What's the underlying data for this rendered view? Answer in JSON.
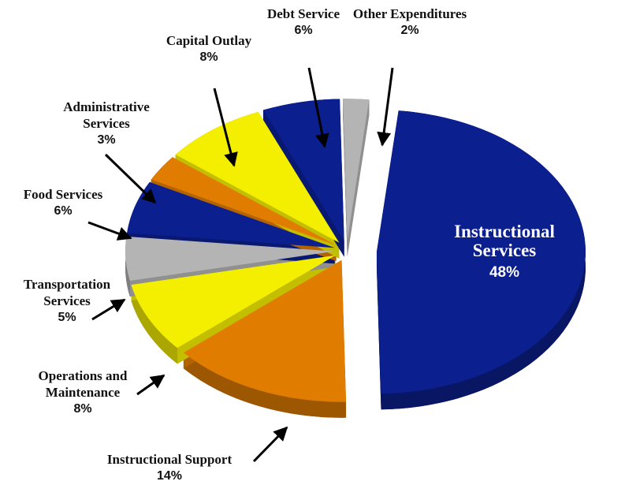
{
  "chart_data": {
    "type": "pie",
    "categories": [
      "Instructional Services",
      "Instructional Support",
      "Operations and Maintenance",
      "Transportation Services",
      "Food Services",
      "Administrative Services",
      "Capital Outlay",
      "Debt Service",
      "Other Expenditures"
    ],
    "values": [
      48,
      14,
      8,
      5,
      6,
      3,
      8,
      6,
      2
    ],
    "value_labels": [
      "48%",
      "14%",
      "8%",
      "5%",
      "6%",
      "3%",
      "8%",
      "6%",
      "2%"
    ],
    "colors": [
      "#0b1f8e",
      "#e07c00",
      "#f4ef00",
      "#b4b4b4",
      "#0b1f8e",
      "#e07c00",
      "#f4ef00",
      "#0b1f8e",
      "#b4b4b4"
    ]
  }
}
